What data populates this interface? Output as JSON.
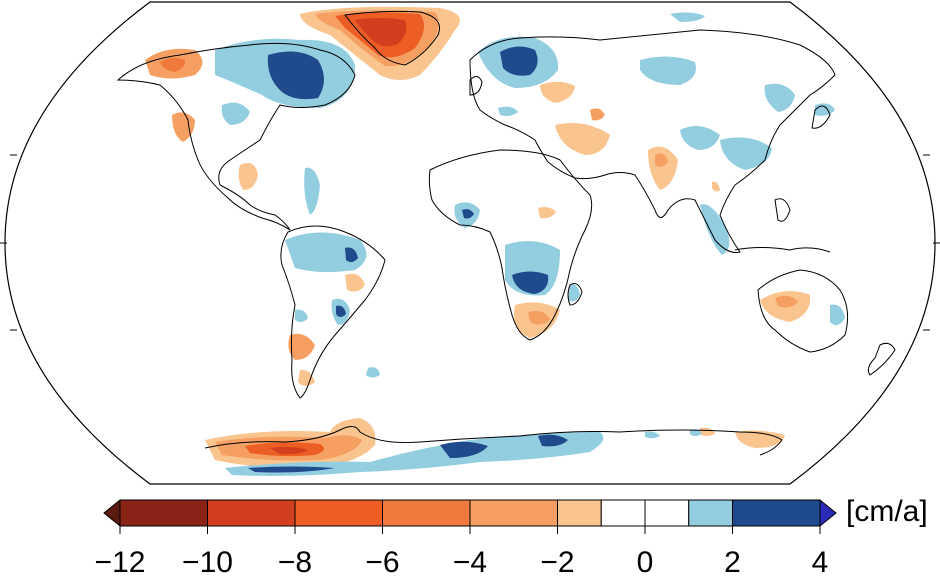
{
  "colorbar": {
    "unit": "[cm/a]",
    "ticks": [
      "−12",
      "−10",
      "−8",
      "−6",
      "−4",
      "−2",
      "0",
      "2",
      "4"
    ],
    "tick_values": [
      -12,
      -10,
      -8,
      -6,
      -4,
      -2,
      0,
      2,
      4
    ],
    "bins": [
      {
        "from": -12,
        "to": -10,
        "color": "#8b2417"
      },
      {
        "from": -10,
        "to": -8,
        "color": "#d23f1e"
      },
      {
        "from": -8,
        "to": -6,
        "color": "#ec5e24"
      },
      {
        "from": -6,
        "to": -4,
        "color": "#f07a3c"
      },
      {
        "from": -4,
        "to": -2,
        "color": "#f5a062"
      },
      {
        "from": -2,
        "to": -1,
        "color": "#f9c48e"
      },
      {
        "from": -1,
        "to": 0,
        "color": "#ffffff"
      },
      {
        "from": 0,
        "to": 1,
        "color": "#ffffff"
      },
      {
        "from": 1,
        "to": 2,
        "color": "#92cde0"
      },
      {
        "from": 2,
        "to": 4,
        "color": "#1f4a8c"
      }
    ],
    "under_color": "#5a1a10",
    "over_color": "#2a2ab8"
  },
  "map": {
    "projection": "Robinson",
    "background": "#ffffff",
    "coastline_color": "#000000"
  }
}
